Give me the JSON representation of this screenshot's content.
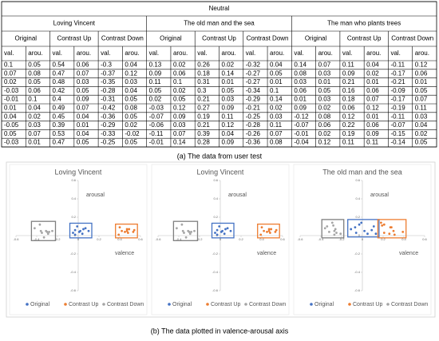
{
  "table": {
    "title": "Neutral",
    "films": [
      "Loving Vincent",
      "The old man and the sea",
      "The man who plants trees"
    ],
    "conditions": [
      "Original",
      "Contrast Up",
      "Contrast Down"
    ],
    "subcolumns": [
      "val.",
      "arou."
    ],
    "rows": [
      [
        0.1,
        0.05,
        0.54,
        0.06,
        -0.3,
        0.04,
        0.13,
        0.02,
        0.26,
        0.02,
        -0.32,
        0.04,
        0.14,
        0.07,
        0.11,
        0.04,
        -0.11,
        0.12
      ],
      [
        0.07,
        0.08,
        0.47,
        0.07,
        -0.37,
        0.12,
        0.09,
        0.06,
        0.18,
        0.14,
        -0.27,
        0.05,
        0.08,
        0.03,
        0.09,
        0.02,
        -0.17,
        0.06
      ],
      [
        0.02,
        0.05,
        0.48,
        0.03,
        -0.35,
        0.03,
        0.11,
        0.1,
        0.31,
        0.01,
        -0.27,
        0.01,
        0.03,
        0.01,
        0.21,
        0.01,
        -0.21,
        0.01
      ],
      [
        -0.03,
        0.06,
        0.42,
        0.05,
        -0.28,
        0.04,
        0.05,
        0.02,
        0.3,
        0.05,
        -0.34,
        0.1,
        0.06,
        0.05,
        0.16,
        0.06,
        -0.09,
        0.05
      ],
      [
        -0.01,
        0.1,
        0.4,
        0.09,
        -0.31,
        0.05,
        0.02,
        0.05,
        0.21,
        0.03,
        -0.29,
        0.14,
        0.01,
        0.03,
        0.18,
        0.07,
        -0.17,
        0.07
      ],
      [
        0.01,
        0.04,
        0.49,
        0.07,
        -0.42,
        0.08,
        -0.03,
        0.12,
        0.27,
        0.09,
        -0.21,
        0.02,
        0.09,
        0.02,
        0.06,
        0.12,
        -0.19,
        0.11
      ],
      [
        0.04,
        0.02,
        0.45,
        0.04,
        -0.36,
        0.05,
        -0.07,
        0.09,
        0.19,
        0.11,
        -0.25,
        0.03,
        -0.12,
        0.08,
        0.12,
        0.01,
        -0.11,
        0.03
      ],
      [
        -0.05,
        0.03,
        0.39,
        0.01,
        -0.29,
        0.02,
        -0.06,
        0.03,
        0.21,
        0.12,
        -0.28,
        0.11,
        -0.07,
        0.06,
        0.22,
        0.06,
        -0.07,
        0.04
      ],
      [
        0.05,
        0.07,
        0.53,
        0.04,
        -0.33,
        -0.02,
        -0.11,
        0.07,
        0.39,
        0.04,
        -0.26,
        0.07,
        -0.01,
        0.02,
        0.19,
        0.09,
        -0.15,
        0.02
      ],
      [
        -0.03,
        0.01,
        0.47,
        0.05,
        -0.25,
        0.05,
        -0.01,
        0.14,
        0.28,
        0.09,
        -0.36,
        0.08,
        -0.04,
        0.12,
        0.11,
        0.11,
        -0.14,
        0.05
      ]
    ]
  },
  "caption_a": "(a) The data from user test",
  "chart_data": [
    {
      "type": "scatter",
      "title": "Loving Vincent",
      "xlabel": "valence",
      "ylabel": "arousal",
      "xlim": [
        -0.6,
        0.6
      ],
      "ylim": [
        -0.6,
        0.6
      ],
      "xticks": [
        -0.6,
        -0.4,
        -0.2,
        0,
        0.2,
        0.4,
        0.6
      ],
      "yticks": [
        -0.6,
        -0.4,
        -0.2,
        0,
        0.2,
        0.4,
        0.6
      ],
      "series": [
        {
          "name": "Original",
          "color": "#4472c4",
          "x": [
            0.1,
            0.07,
            0.02,
            -0.03,
            -0.01,
            0.01,
            0.04,
            -0.05,
            0.05,
            -0.03
          ],
          "values": [
            0.05,
            0.08,
            0.05,
            0.06,
            0.1,
            0.04,
            0.02,
            0.03,
            0.07,
            0.01
          ]
        },
        {
          "name": "Contrast Up",
          "color": "#ed7d31",
          "x": [
            0.54,
            0.47,
            0.48,
            0.42,
            0.4,
            0.49,
            0.45,
            0.39,
            0.53,
            0.47
          ],
          "values": [
            0.06,
            0.07,
            0.03,
            0.05,
            0.09,
            0.07,
            0.04,
            0.01,
            0.04,
            0.05
          ]
        },
        {
          "name": "Contrast Down",
          "color": "#a5a5a5",
          "x": [
            -0.3,
            -0.37,
            -0.35,
            -0.28,
            -0.31,
            -0.42,
            -0.36,
            -0.29,
            -0.33,
            -0.25
          ],
          "values": [
            0.04,
            0.12,
            0.03,
            0.04,
            0.05,
            0.08,
            0.05,
            0.02,
            -0.02,
            0.05
          ]
        }
      ]
    },
    {
      "type": "scatter",
      "title": "Loving Vincent",
      "xlabel": "valence",
      "ylabel": "arousal",
      "xlim": [
        -0.6,
        0.6
      ],
      "ylim": [
        -0.6,
        0.6
      ],
      "xticks": [
        -0.6,
        -0.4,
        -0.2,
        0,
        0.2,
        0.4,
        0.6
      ],
      "yticks": [
        -0.6,
        -0.4,
        -0.2,
        0,
        0.2,
        0.4,
        0.6
      ],
      "series": [
        {
          "name": "Original",
          "color": "#4472c4",
          "x": [
            0.1,
            0.07,
            0.02,
            -0.03,
            -0.01,
            0.01,
            0.04,
            -0.05,
            0.05,
            -0.03
          ],
          "values": [
            0.05,
            0.08,
            0.05,
            0.06,
            0.1,
            0.04,
            0.02,
            0.03,
            0.07,
            0.01
          ]
        },
        {
          "name": "Contrast Up",
          "color": "#ed7d31",
          "x": [
            0.54,
            0.47,
            0.48,
            0.42,
            0.4,
            0.49,
            0.45,
            0.39,
            0.53,
            0.47
          ],
          "values": [
            0.06,
            0.07,
            0.03,
            0.05,
            0.09,
            0.07,
            0.04,
            0.01,
            0.04,
            0.05
          ]
        },
        {
          "name": "Contrast Down",
          "color": "#a5a5a5",
          "x": [
            -0.3,
            -0.37,
            -0.35,
            -0.28,
            -0.31,
            -0.42,
            -0.36,
            -0.29,
            -0.33,
            -0.25
          ],
          "values": [
            0.04,
            0.12,
            0.03,
            0.04,
            0.05,
            0.08,
            0.05,
            0.02,
            -0.02,
            0.05
          ]
        }
      ]
    },
    {
      "type": "scatter",
      "title": "The old man and  the sea",
      "xlabel": "valence",
      "ylabel": "arousal",
      "xlim": [
        -0.6,
        0.6
      ],
      "ylim": [
        -0.6,
        0.6
      ],
      "xticks": [
        -0.6,
        -0.4,
        -0.2,
        0,
        0.2,
        0.4,
        0.6
      ],
      "yticks": [
        -0.6,
        -0.4,
        -0.2,
        0,
        0.2,
        0.4,
        0.6
      ],
      "series": [
        {
          "name": "Original",
          "color": "#4472c4",
          "x": [
            0.13,
            0.09,
            0.11,
            0.05,
            0.02,
            -0.03,
            -0.07,
            -0.06,
            -0.11,
            -0.01
          ],
          "values": [
            0.02,
            0.06,
            0.1,
            0.02,
            0.05,
            0.12,
            0.09,
            0.03,
            0.07,
            0.14
          ]
        },
        {
          "name": "Contrast Up",
          "color": "#ed7d31",
          "x": [
            0.26,
            0.18,
            0.31,
            0.3,
            0.21,
            0.27,
            0.19,
            0.21,
            0.39,
            0.28
          ],
          "values": [
            0.02,
            0.14,
            0.01,
            0.05,
            0.03,
            0.09,
            0.11,
            0.12,
            0.04,
            0.09
          ]
        },
        {
          "name": "Contrast Down",
          "color": "#a5a5a5",
          "x": [
            -0.32,
            -0.27,
            -0.27,
            -0.34,
            -0.29,
            -0.21,
            -0.25,
            -0.28,
            -0.26,
            -0.36
          ],
          "values": [
            0.04,
            0.05,
            0.01,
            0.1,
            0.14,
            0.02,
            0.03,
            0.11,
            0.07,
            0.08
          ]
        }
      ]
    }
  ],
  "caption_b": "(b) The data plotted in valence-arousal axis"
}
